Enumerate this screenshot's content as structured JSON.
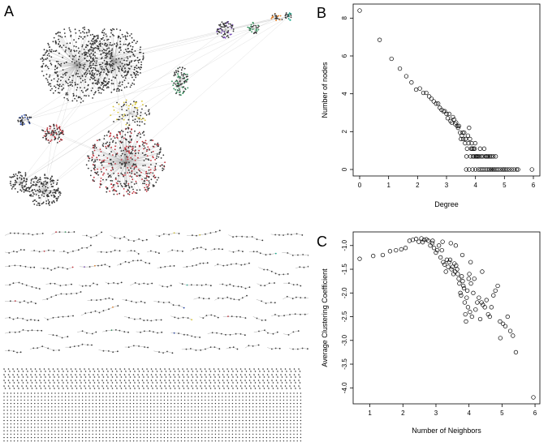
{
  "panels": {
    "a": "A",
    "b": "B",
    "c": "C"
  },
  "network": {
    "node_color": "#333333",
    "edge_color": "#999999",
    "module_colors": [
      "#1f3fa0",
      "#c0303a",
      "#2e8b57",
      "#e07b20",
      "#18a58a",
      "#7b4db8",
      "#d6c22a"
    ]
  },
  "chart_data": [
    {
      "type": "scatter",
      "panel": "B",
      "xlabel": "Degree",
      "ylabel": "Number of nodes",
      "xlim": [
        0,
        6
      ],
      "ylim": [
        0,
        8.4
      ],
      "xticks": [
        0,
        1,
        2,
        3,
        4,
        5,
        6
      ],
      "yticks": [
        0,
        2,
        4,
        6,
        8
      ],
      "x": [
        0,
        0.69,
        1.1,
        1.39,
        1.61,
        1.79,
        1.95,
        2.08,
        2.2,
        2.3,
        2.4,
        2.48,
        2.56,
        2.64,
        2.71,
        2.77,
        2.83,
        2.89,
        2.94,
        3.0,
        3.04,
        3.09,
        3.14,
        3.18,
        3.22,
        3.26,
        3.3,
        3.33,
        3.37,
        3.4,
        3.43,
        3.47,
        3.5,
        3.53,
        3.56,
        3.58,
        3.61,
        3.64,
        3.66,
        3.69,
        3.71,
        3.74,
        3.76,
        3.78,
        3.81,
        3.83,
        3.85,
        3.87,
        3.89,
        3.91,
        3.93,
        3.95,
        3.97,
        3.99,
        4.01,
        4.03,
        4.06,
        4.09,
        4.13,
        4.16,
        4.2,
        4.25,
        4.3,
        4.34,
        4.38,
        4.4,
        4.45,
        4.5,
        4.55,
        4.62,
        4.7,
        3.68,
        3.78,
        3.9,
        4.0,
        4.1,
        4.17,
        4.23,
        4.29,
        4.36,
        4.42,
        4.48,
        4.53,
        4.58,
        4.63,
        4.68,
        4.74,
        4.8,
        4.87,
        4.94,
        4.98,
        5.03,
        5.1,
        5.17,
        5.25,
        5.33,
        5.42,
        5.47,
        5.95
      ],
      "y": [
        8.4,
        6.85,
        5.85,
        5.33,
        4.93,
        4.6,
        4.22,
        4.28,
        4.05,
        4.05,
        3.86,
        3.74,
        3.6,
        3.48,
        3.48,
        3.26,
        3.15,
        3.08,
        3.08,
        2.94,
        2.71,
        2.94,
        2.56,
        2.48,
        2.77,
        2.64,
        2.4,
        2.48,
        2.3,
        2.2,
        2.3,
        1.95,
        1.61,
        1.79,
        1.95,
        1.61,
        1.95,
        1.39,
        1.61,
        0.69,
        1.1,
        1.79,
        1.39,
        2.2,
        1.61,
        0.69,
        1.1,
        1.39,
        1.1,
        0.69,
        1.1,
        0.69,
        1.1,
        1.39,
        0.69,
        0.69,
        0.69,
        0.69,
        0.69,
        1.1,
        0.69,
        0.69,
        1.1,
        0.69,
        0.69,
        0.69,
        0.69,
        0.69,
        0.69,
        0.69,
        0.69,
        0,
        0,
        0,
        0,
        0,
        0,
        0,
        0,
        0,
        0,
        0,
        0,
        0,
        0,
        0,
        0,
        0,
        0,
        0,
        0,
        0,
        0,
        0,
        0,
        0,
        0,
        0,
        0
      ]
    },
    {
      "type": "scatter",
      "panel": "C",
      "xlabel": "Number of Neighbors",
      "ylabel": "Average Clustering Coefficient",
      "xlim": [
        0.69,
        5.95
      ],
      "ylim": [
        -4.2,
        -0.85
      ],
      "xticks": [
        1,
        2,
        3,
        4,
        5,
        6
      ],
      "yticks": [
        -1.0,
        -1.5,
        -2.0,
        -2.5,
        -3.0,
        -3.5,
        -4.0
      ],
      "ytick_labels": [
        "-1.0",
        "-1.5",
        "-2.0",
        "-2.5",
        "-3.0",
        "-3.5",
        "-4.0"
      ],
      "x": [
        0.69,
        1.1,
        1.39,
        1.61,
        1.79,
        1.95,
        2.08,
        2.2,
        2.3,
        2.4,
        2.48,
        2.56,
        2.64,
        2.71,
        2.77,
        2.83,
        2.89,
        2.94,
        3.0,
        3.04,
        3.09,
        3.14,
        3.18,
        3.22,
        3.26,
        3.3,
        3.33,
        3.37,
        3.4,
        3.43,
        3.47,
        3.5,
        3.53,
        3.56,
        3.58,
        3.61,
        3.64,
        3.66,
        3.69,
        3.71,
        3.74,
        3.76,
        3.78,
        3.81,
        3.83,
        3.85,
        3.87,
        3.89,
        3.91,
        3.93,
        3.95,
        3.97,
        3.99,
        4.01,
        4.03,
        4.06,
        4.09,
        4.13,
        4.16,
        4.2,
        4.25,
        4.3,
        4.34,
        4.38,
        4.42,
        4.48,
        4.53,
        4.58,
        4.63,
        4.68,
        4.74,
        4.8,
        4.87,
        4.94,
        5.03,
        5.1,
        5.17,
        5.25,
        5.33,
        5.42,
        5.95,
        4.95,
        4.4,
        4.05,
        3.8,
        3.6,
        3.45,
        3.2,
        2.9,
        2.6
      ],
      "y": [
        -1.28,
        -1.22,
        -1.2,
        -1.12,
        -1.1,
        -1.08,
        -1.05,
        -0.9,
        -0.88,
        -0.86,
        -0.92,
        -0.85,
        -0.88,
        -0.87,
        -0.9,
        -1.0,
        -0.95,
        -1.05,
        -1.15,
        -1.1,
        -1.0,
        -1.25,
        -1.1,
        -1.35,
        -1.4,
        -1.55,
        -1.3,
        -1.45,
        -1.35,
        -1.3,
        -1.5,
        -1.45,
        -1.6,
        -1.38,
        -1.55,
        -1.42,
        -1.5,
        -1.6,
        -1.7,
        -1.8,
        -2.0,
        -2.05,
        -1.65,
        -1.75,
        -1.85,
        -1.9,
        -2.2,
        -2.45,
        -2.6,
        -2.1,
        -1.95,
        -2.3,
        -1.7,
        -1.6,
        -2.4,
        -1.8,
        -2.5,
        -2.0,
        -1.7,
        -2.35,
        -2.2,
        -2.1,
        -2.55,
        -2.2,
        -2.25,
        -2.3,
        -2.15,
        -2.45,
        -2.5,
        -2.3,
        -2.05,
        -1.95,
        -1.85,
        -2.6,
        -2.65,
        -2.7,
        -2.5,
        -2.8,
        -2.9,
        -3.25,
        -4.2,
        -2.95,
        -1.55,
        -1.35,
        -1.2,
        -1.0,
        -0.95,
        -0.92,
        -0.9,
        -0.93
      ]
    }
  ]
}
